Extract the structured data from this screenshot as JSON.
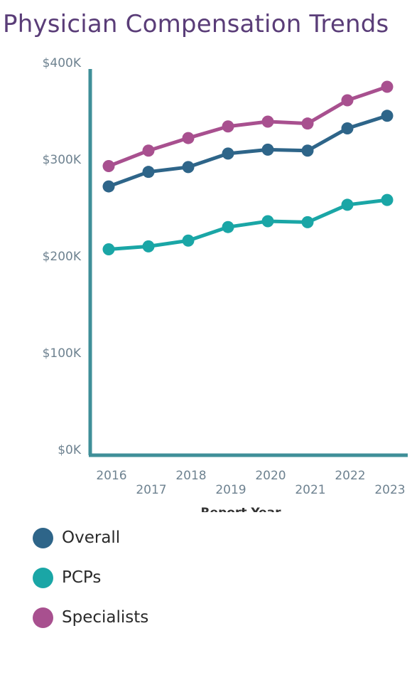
{
  "chart_data": {
    "type": "line",
    "title": "Physician Compensation Trends",
    "xlabel": "Report Year",
    "ylabel": "",
    "x": [
      "2016",
      "2017",
      "2018",
      "2019",
      "2020",
      "2021",
      "2022",
      "2023"
    ],
    "ylim": [
      0,
      400000
    ],
    "yticks": [
      0,
      100000,
      200000,
      300000,
      400000
    ],
    "ytick_labels": [
      "$0K",
      "$100K",
      "$200K",
      "$300K",
      "$400K"
    ],
    "grid": false,
    "legend_position": "bottom-left",
    "series": [
      {
        "name": "Overall",
        "color": "#2e6589",
        "values": [
          272000,
          287000,
          292000,
          306000,
          310000,
          309000,
          332000,
          345000
        ]
      },
      {
        "name": "PCPs",
        "color": "#1aa6a6",
        "values": [
          207000,
          210000,
          216000,
          230000,
          236000,
          235000,
          253000,
          258000
        ]
      },
      {
        "name": "Specialists",
        "color": "#a8508f",
        "values": [
          293000,
          309000,
          322000,
          334000,
          339000,
          337000,
          361000,
          375000
        ]
      }
    ],
    "axis_color": "#3f8f98"
  }
}
